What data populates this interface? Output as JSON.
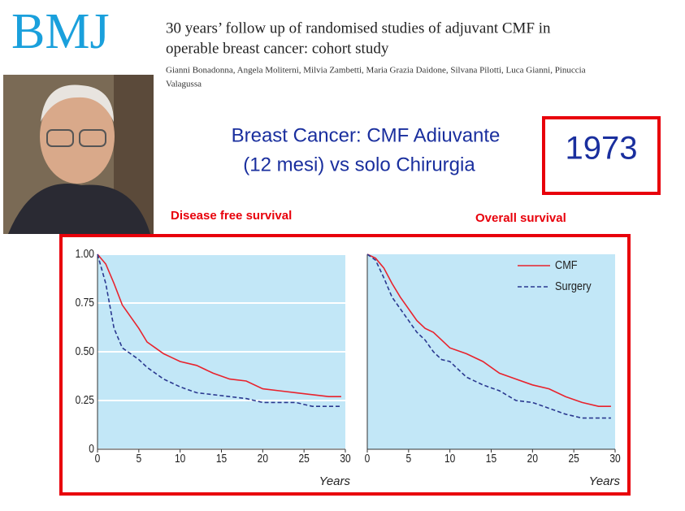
{
  "header": {
    "logo": "BMJ",
    "paper_title": [
      "30 years’ follow up of randomised studies of adjuvant CMF in",
      "operable breast cancer: cohort study"
    ],
    "authors": [
      "Gianni Bonadonna, Angela Moliterni, Milvia Zambetti, Maria Grazia Daidone, Silvana Pilotti, Luca Gianni, Pinuccia",
      "Valagussa"
    ],
    "slide_title": [
      "Breast Cancer: CMF Adiuvante",
      "(12 mesi) vs solo  Chirurgia"
    ],
    "year": "1973"
  },
  "chart_data": [
    {
      "type": "line",
      "title": "Disease free survival",
      "xlabel": "Years",
      "x": [
        0,
        1,
        2,
        3,
        4,
        5,
        6,
        7,
        8,
        9,
        10,
        12,
        14,
        16,
        18,
        20,
        22,
        24,
        26,
        28,
        29.5
      ],
      "series": [
        {
          "color": "#e8232d",
          "dash": false,
          "values": [
            1,
            0.95,
            0.85,
            0.74,
            0.68,
            0.62,
            0.55,
            0.52,
            0.49,
            0.47,
            0.45,
            0.43,
            0.39,
            0.36,
            0.35,
            0.31,
            0.3,
            0.29,
            0.28,
            0.27,
            0.27
          ]
        },
        {
          "color": "#2b3990",
          "dash": true,
          "values": [
            1,
            0.85,
            0.62,
            0.52,
            0.49,
            0.46,
            0.42,
            0.39,
            0.36,
            0.34,
            0.32,
            0.29,
            0.28,
            0.27,
            0.26,
            0.24,
            0.24,
            0.24,
            0.22,
            0.22,
            0.22
          ]
        }
      ],
      "xlim": [
        0,
        30
      ],
      "xticks": [
        0,
        5,
        10,
        15,
        20,
        25,
        30
      ],
      "ylim": [
        0,
        1
      ],
      "yticks": [
        0,
        0.25,
        {
          "value": 0.5,
          "label": "0.50"
        },
        0.75,
        {
          "value": 1,
          "label": "1.00"
        }
      ],
      "grid": true
    },
    {
      "type": "line",
      "title": "Overall  survival",
      "xlabel": "Years",
      "legend": "upper right",
      "x": [
        0,
        1,
        2,
        3,
        4,
        5,
        6,
        7,
        8,
        9,
        10,
        12,
        14,
        16,
        18,
        20,
        22,
        24,
        26,
        28,
        29.5
      ],
      "series": [
        {
          "name": "CMF",
          "color": "#e8232d",
          "dash": false,
          "values": [
            1,
            0.98,
            0.93,
            0.85,
            0.78,
            0.72,
            0.66,
            0.62,
            0.6,
            0.56,
            0.52,
            0.49,
            0.45,
            0.39,
            0.36,
            0.33,
            0.31,
            0.27,
            0.24,
            0.22,
            0.22
          ]
        },
        {
          "name": "Surgery",
          "color": "#2b3990",
          "dash": true,
          "values": [
            1,
            0.97,
            0.88,
            0.78,
            0.72,
            0.66,
            0.6,
            0.56,
            0.5,
            0.46,
            0.45,
            0.37,
            0.33,
            0.3,
            0.25,
            0.24,
            0.21,
            0.18,
            0.16,
            0.16,
            0.16
          ]
        }
      ],
      "xlim": [
        0,
        30
      ],
      "xticks": [
        0,
        5,
        10,
        15,
        20,
        25,
        30
      ],
      "ylim": [
        0,
        1
      ],
      "grid": true
    }
  ]
}
